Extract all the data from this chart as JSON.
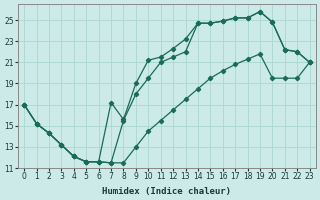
{
  "title": "",
  "xlabel": "Humidex (Indice chaleur)",
  "ylabel": "",
  "background_color": "#cceae8",
  "grid_color": "#b0d8d5",
  "line_color": "#1a6b5a",
  "xlim": [
    -0.5,
    23.5
  ],
  "ylim": [
    11,
    26.5
  ],
  "yticks": [
    11,
    13,
    15,
    17,
    19,
    21,
    23,
    25
  ],
  "xticks": [
    0,
    1,
    2,
    3,
    4,
    5,
    6,
    7,
    8,
    9,
    10,
    11,
    12,
    13,
    14,
    15,
    16,
    17,
    18,
    19,
    20,
    21,
    22,
    23
  ],
  "line1_x": [
    0,
    1,
    2,
    3,
    4,
    5,
    6,
    7,
    8,
    9,
    10,
    11,
    12,
    13,
    14,
    15,
    16,
    17,
    18,
    19,
    20,
    21,
    22,
    23
  ],
  "line1_y": [
    17.0,
    15.2,
    14.3,
    13.2,
    12.1,
    11.6,
    11.6,
    11.5,
    11.5,
    13.0,
    14.5,
    15.5,
    16.5,
    17.5,
    18.5,
    19.5,
    20.2,
    20.8,
    21.3,
    21.8,
    19.5,
    19.5,
    19.5,
    21.0
  ],
  "line2_x": [
    0,
    1,
    2,
    3,
    4,
    5,
    6,
    7,
    8,
    9,
    10,
    11,
    12,
    13,
    14,
    15,
    16,
    17,
    18,
    19,
    20,
    21,
    22,
    23
  ],
  "line2_y": [
    17.0,
    15.2,
    14.3,
    13.2,
    12.1,
    11.6,
    11.6,
    11.5,
    15.5,
    18.0,
    19.5,
    21.0,
    21.5,
    22.0,
    24.7,
    24.7,
    24.9,
    25.2,
    25.2,
    25.8,
    24.8,
    22.2,
    22.0,
    21.0
  ],
  "line3_x": [
    0,
    1,
    2,
    3,
    4,
    5,
    6,
    7,
    8,
    9,
    10,
    11,
    12,
    13,
    14,
    15,
    16,
    17,
    18,
    19,
    20,
    21,
    22,
    23
  ],
  "line3_y": [
    17.0,
    15.2,
    14.3,
    13.2,
    12.1,
    11.6,
    11.6,
    17.2,
    15.6,
    19.0,
    21.2,
    21.5,
    22.3,
    23.2,
    24.7,
    24.7,
    24.9,
    25.2,
    25.2,
    25.8,
    24.8,
    22.2,
    22.0,
    21.0
  ]
}
